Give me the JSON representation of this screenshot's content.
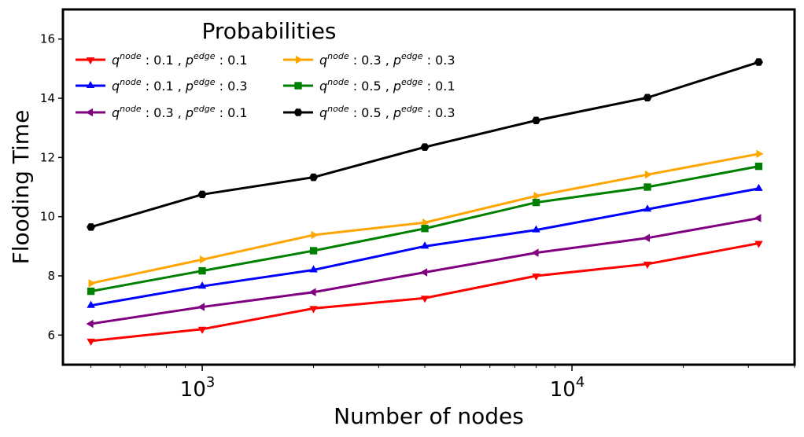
{
  "chart_data": {
    "type": "line",
    "title": "",
    "xlabel": "Number of nodes",
    "ylabel": "Flooding Time",
    "xscale": "log",
    "xlim": [
      420,
      40000
    ],
    "ylim": [
      5,
      17
    ],
    "yticks": [
      6,
      8,
      10,
      12,
      14,
      16
    ],
    "xticks": [
      {
        "value": 1000,
        "base": "10",
        "exp": "3"
      },
      {
        "value": 10000,
        "base": "10",
        "exp": "4"
      }
    ],
    "x": [
      500,
      1000,
      2000,
      4000,
      8000,
      16000,
      32000
    ],
    "legend": {
      "title": "Probabilities",
      "placement": "top-left",
      "columns": 2
    },
    "series": [
      {
        "name": "q^node : 0.1 , p^edge : 0.1",
        "label": {
          "q": "0.1",
          "p": "0.1"
        },
        "color": "#ff0000",
        "marker": "triangle-down",
        "values": [
          5.8,
          6.2,
          6.9,
          7.25,
          8.0,
          8.4,
          9.1
        ]
      },
      {
        "name": "q^node : 0.1 , p^edge : 0.3",
        "label": {
          "q": "0.1",
          "p": "0.3"
        },
        "color": "#0000ff",
        "marker": "triangle-up",
        "values": [
          7.0,
          7.65,
          8.2,
          9.0,
          9.55,
          10.25,
          10.95
        ]
      },
      {
        "name": "q^node : 0.3 , p^edge : 0.1",
        "label": {
          "q": "0.3",
          "p": "0.1"
        },
        "color": "#800080",
        "marker": "triangle-left",
        "values": [
          6.38,
          6.95,
          7.45,
          8.12,
          8.78,
          9.28,
          9.95
        ]
      },
      {
        "name": "q^node : 0.3 , p^edge : 0.3",
        "label": {
          "q": "0.3",
          "p": "0.3"
        },
        "color": "#ffa500",
        "marker": "triangle-right",
        "values": [
          7.75,
          8.55,
          9.38,
          9.8,
          10.7,
          11.42,
          12.12
        ]
      },
      {
        "name": "q^node : 0.5 , p^edge : 0.1",
        "label": {
          "q": "0.5",
          "p": "0.1"
        },
        "color": "#008000",
        "marker": "square",
        "values": [
          7.48,
          8.17,
          8.85,
          9.6,
          10.48,
          11.0,
          11.7
        ]
      },
      {
        "name": "q^node : 0.5 , p^edge : 0.3",
        "label": {
          "q": "0.5",
          "p": "0.3"
        },
        "color": "#000000",
        "marker": "hexagon",
        "values": [
          9.65,
          10.75,
          11.33,
          12.35,
          13.25,
          14.02,
          15.22
        ]
      }
    ],
    "grid": false
  }
}
